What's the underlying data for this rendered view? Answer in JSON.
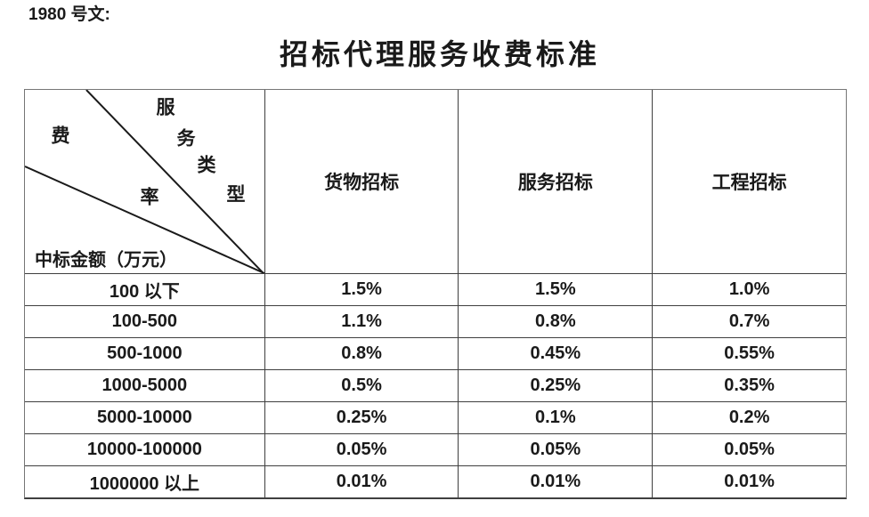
{
  "document": {
    "ref_label": "1980 号文:",
    "title": "招标代理服务收费标准"
  },
  "table": {
    "corner": {
      "fee_rate_label_chars": [
        "费",
        "率"
      ],
      "service_type_label_chars": [
        "服",
        "务",
        "类",
        "型"
      ],
      "amount_label": "中标金额（万元）"
    },
    "columns": [
      "货物招标",
      "服务招标",
      "工程招标"
    ],
    "rows": [
      {
        "label": "100 以下",
        "values": [
          "1.5%",
          "1.5%",
          "1.0%"
        ]
      },
      {
        "label": "100-500",
        "values": [
          "1.1%",
          "0.8%",
          "0.7%"
        ]
      },
      {
        "label": "500-1000",
        "values": [
          "0.8%",
          "0.45%",
          "0.55%"
        ]
      },
      {
        "label": "1000-5000",
        "values": [
          "0.5%",
          "0.25%",
          "0.35%"
        ]
      },
      {
        "label": "5000-10000",
        "values": [
          "0.25%",
          "0.1%",
          "0.2%"
        ]
      },
      {
        "label": "10000-100000",
        "values": [
          "0.05%",
          "0.05%",
          "0.05%"
        ]
      },
      {
        "label": "1000000 以上",
        "values": [
          "0.01%",
          "0.01%",
          "0.01%"
        ]
      }
    ]
  },
  "colors": {
    "grid_line": "#3f3f3f",
    "outer_border": "#767676",
    "text": "#1a1a1a"
  }
}
